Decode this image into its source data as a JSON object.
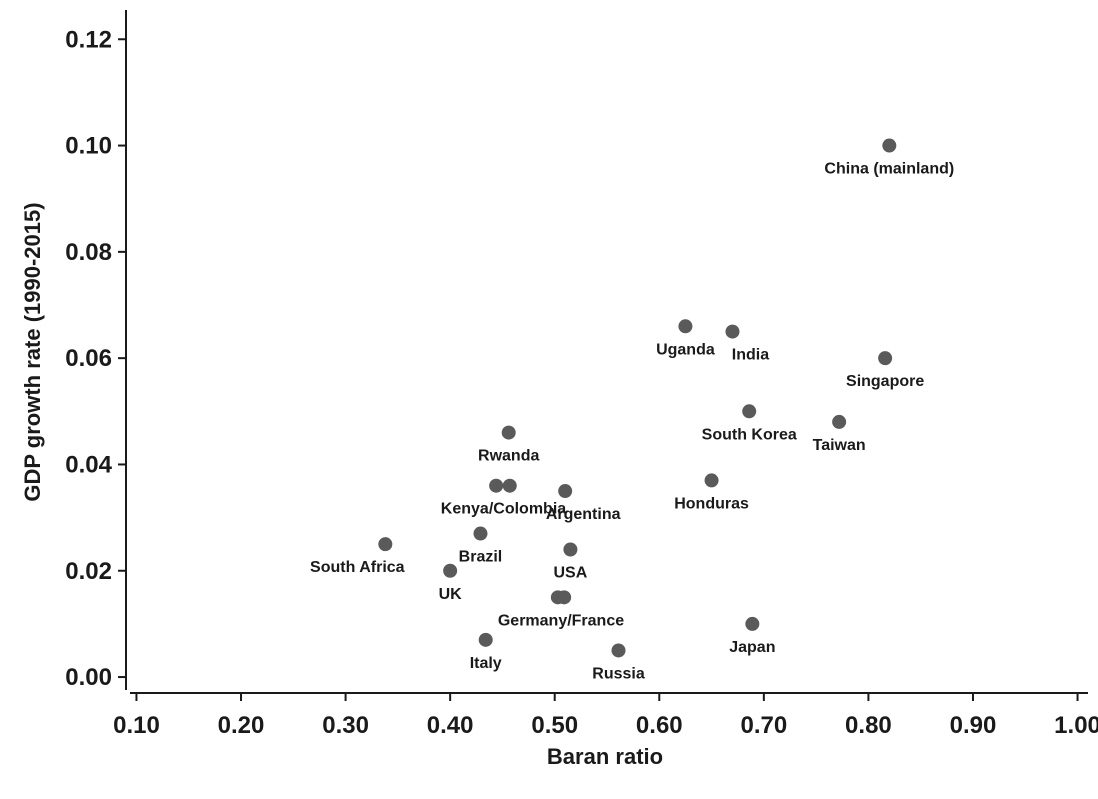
{
  "chart_data": {
    "type": "scatter",
    "title": "",
    "xlabel": "Baran ratio",
    "ylabel": "GDP growth rate (1990-2015)",
    "xlim": [
      0.09,
      1.01
    ],
    "ylim": [
      -0.003,
      0.124
    ],
    "grid": false,
    "x_ticks": [
      0.1,
      0.2,
      0.3,
      0.4,
      0.5,
      0.6,
      0.7,
      0.8,
      0.9,
      1.0
    ],
    "x_tick_labels": [
      "0.10",
      "0.20",
      "0.30",
      "0.40",
      "0.50",
      "0.60",
      "0.70",
      "0.80",
      "0.90",
      "1.00"
    ],
    "y_ticks": [
      0.0,
      0.02,
      0.04,
      0.06,
      0.08,
      0.1,
      0.12
    ],
    "y_tick_labels": [
      "0.00",
      "0.02",
      "0.04",
      "0.06",
      "0.08",
      "0.10",
      "0.12"
    ],
    "points": [
      {
        "x": 0.82,
        "y": 0.1
      },
      {
        "x": 0.625,
        "y": 0.066
      },
      {
        "x": 0.67,
        "y": 0.065
      },
      {
        "x": 0.816,
        "y": 0.06
      },
      {
        "x": 0.686,
        "y": 0.05
      },
      {
        "x": 0.772,
        "y": 0.048
      },
      {
        "x": 0.456,
        "y": 0.046
      },
      {
        "x": 0.65,
        "y": 0.037
      },
      {
        "x": 0.444,
        "y": 0.036
      },
      {
        "x": 0.457,
        "y": 0.036
      },
      {
        "x": 0.51,
        "y": 0.035
      },
      {
        "x": 0.429,
        "y": 0.027
      },
      {
        "x": 0.338,
        "y": 0.025
      },
      {
        "x": 0.515,
        "y": 0.024
      },
      {
        "x": 0.4,
        "y": 0.02
      },
      {
        "x": 0.503,
        "y": 0.015
      },
      {
        "x": 0.509,
        "y": 0.015
      },
      {
        "x": 0.689,
        "y": 0.01
      },
      {
        "x": 0.434,
        "y": 0.007
      },
      {
        "x": 0.561,
        "y": 0.005
      }
    ],
    "annotations": [
      {
        "text": "China (mainland)",
        "x": 0.82,
        "y": 0.1,
        "pos": "below"
      },
      {
        "text": "Uganda",
        "x": 0.625,
        "y": 0.066,
        "pos": "below"
      },
      {
        "text": "India",
        "x": 0.67,
        "y": 0.065,
        "pos": "below-right"
      },
      {
        "text": "Singapore",
        "x": 0.816,
        "y": 0.06,
        "pos": "below"
      },
      {
        "text": "South Korea",
        "x": 0.686,
        "y": 0.05,
        "pos": "below"
      },
      {
        "text": "Taiwan",
        "x": 0.772,
        "y": 0.048,
        "pos": "below"
      },
      {
        "text": "Rwanda",
        "x": 0.456,
        "y": 0.046,
        "pos": "below"
      },
      {
        "text": "Honduras",
        "x": 0.65,
        "y": 0.037,
        "pos": "below"
      },
      {
        "text": "Kenya/Colombia",
        "x": 0.451,
        "y": 0.036,
        "pos": "below"
      },
      {
        "text": "Argentina",
        "x": 0.51,
        "y": 0.035,
        "pos": "below-right"
      },
      {
        "text": "Brazil",
        "x": 0.429,
        "y": 0.027,
        "pos": "below"
      },
      {
        "text": "South Africa",
        "x": 0.338,
        "y": 0.025,
        "pos": "below-left"
      },
      {
        "text": "USA",
        "x": 0.515,
        "y": 0.024,
        "pos": "below"
      },
      {
        "text": "UK",
        "x": 0.4,
        "y": 0.02,
        "pos": "below"
      },
      {
        "text": "Germany/France",
        "x": 0.506,
        "y": 0.015,
        "pos": "below"
      },
      {
        "text": "Japan",
        "x": 0.689,
        "y": 0.01,
        "pos": "below"
      },
      {
        "text": "Italy",
        "x": 0.434,
        "y": 0.007,
        "pos": "below"
      },
      {
        "text": "Russia",
        "x": 0.561,
        "y": 0.005,
        "pos": "below"
      }
    ]
  },
  "colors": {
    "point": "#5a5a5a",
    "text": "#1a1a1a",
    "axis": "#1a1a1a"
  }
}
